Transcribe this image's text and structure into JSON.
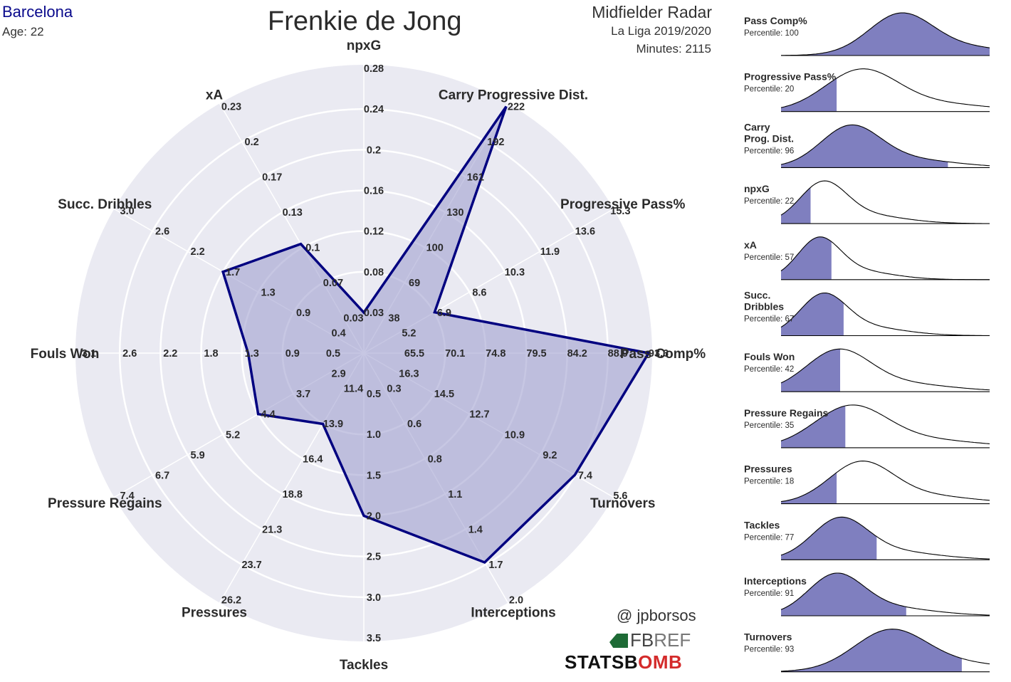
{
  "header": {
    "team": "Barcelona",
    "age": "Age: 22",
    "player": "Frenkie de Jong",
    "radar_title": "Midfielder Radar",
    "league": "La Liga 2019/2020",
    "minutes": "Minutes: 2115"
  },
  "credits": {
    "handle": "@ jpborsos",
    "fbref_fb": "FB",
    "fbref_ref": "REF",
    "statsbomb_a": "STATSB",
    "statsbomb_b": "OMB",
    "statsbomb_c": ""
  },
  "colors": {
    "background": "#eaeaf2",
    "polygon_fill": "#9999cc",
    "polygon_stroke": "#000080",
    "team": "#0a0a8c",
    "density_fill": "#7f7fbf"
  },
  "chart_data": [
    {
      "type": "radar",
      "rings": 5,
      "axes": [
        {
          "name": "npxG",
          "ticks": [
            "0.03",
            "0.08",
            "0.12",
            "0.16",
            "0.2",
            "0.24",
            "0.28"
          ],
          "value": 0.03
        },
        {
          "name": "Carry Progressive Dist.",
          "ticks": [
            "38",
            "69",
            "100",
            "130",
            "161",
            "192",
            "222"
          ],
          "value": 222
        },
        {
          "name": "Progressive Pass%",
          "ticks": [
            "5.2",
            "6.9",
            "8.6",
            "10.3",
            "11.9",
            "13.6",
            "15.3"
          ],
          "value": 6.9
        },
        {
          "name": "Pass Comp%",
          "ticks": [
            "65.5",
            "70.1",
            "74.8",
            "79.5",
            "84.2",
            "88.9",
            "93.6"
          ],
          "value": 93.6
        },
        {
          "name": "Turnovers",
          "ticks": [
            "16.3",
            "14.5",
            "12.7",
            "10.9",
            "9.2",
            "7.4",
            "5.6"
          ],
          "value": 7.4
        },
        {
          "name": "Interceptions",
          "ticks": [
            "0.3",
            "0.6",
            "0.8",
            "1.1",
            "1.4",
            "1.7",
            "2.0"
          ],
          "value": 1.7
        },
        {
          "name": "Tackles",
          "ticks": [
            "0.5",
            "1.0",
            "1.5",
            "2.0",
            "2.5",
            "3.0",
            "3.5"
          ],
          "value": 2.0
        },
        {
          "name": "Pressures",
          "ticks": [
            "11.4",
            "13.9",
            "16.4",
            "18.8",
            "21.3",
            "23.7",
            "26.2"
          ],
          "value": 13.9
        },
        {
          "name": "Pressure Regains",
          "ticks": [
            "2.9",
            "3.7",
            "4.4",
            "5.2",
            "5.9",
            "6.7",
            "7.4"
          ],
          "value": 4.4
        },
        {
          "name": "Fouls Won",
          "ticks": [
            "0.5",
            "0.9",
            "1.3",
            "1.8",
            "2.2",
            "2.6",
            "3.1"
          ],
          "value": 1.3
        },
        {
          "name": "Succ. Dribbles",
          "ticks": [
            "0.4",
            "0.9",
            "1.3",
            "1.7",
            "2.2",
            "2.6",
            "3.0"
          ],
          "value": 1.7
        },
        {
          "name": "xA",
          "ticks": [
            "0.03",
            "0.07",
            "0.1",
            "0.13",
            "0.17",
            "0.2",
            "0.23"
          ],
          "value": 0.1
        }
      ]
    },
    {
      "type": "area",
      "subtype": "density-percentiles",
      "panels": [
        {
          "name": "Pass Comp%",
          "label_lines": [
            "Pass Comp%"
          ],
          "percentile": "Percentile: 100",
          "p": 100,
          "mu": 0.57,
          "sd": 0.15
        },
        {
          "name": "Progressive Pass%",
          "label_lines": [
            "Progressive Pass%"
          ],
          "percentile": "Percentile: 20",
          "p": 20,
          "mu": 0.38,
          "sd": 0.17
        },
        {
          "name": "Carry Prog. Dist.",
          "label_lines": [
            "Carry",
            "Prog. Dist."
          ],
          "percentile": "Percentile: 96",
          "p": 96,
          "mu": 0.33,
          "sd": 0.14
        },
        {
          "name": "npxG",
          "label_lines": [
            "npxG"
          ],
          "percentile": "Percentile: 22",
          "p": 22,
          "mu": 0.2,
          "sd": 0.11
        },
        {
          "name": "xA",
          "label_lines": [
            "xA"
          ],
          "percentile": "Percentile: 57",
          "p": 57,
          "mu": 0.18,
          "sd": 0.1
        },
        {
          "name": "Succ. Dribbles",
          "label_lines": [
            "Succ.",
            "Dribbles"
          ],
          "percentile": "Percentile: 67",
          "p": 67,
          "mu": 0.2,
          "sd": 0.11
        },
        {
          "name": "Fouls Won",
          "label_lines": [
            "Fouls Won"
          ],
          "percentile": "Percentile: 42",
          "p": 42,
          "mu": 0.27,
          "sd": 0.15
        },
        {
          "name": "Pressure Regains",
          "label_lines": [
            "Pressure Regains"
          ],
          "percentile": "Percentile: 35",
          "p": 35,
          "mu": 0.33,
          "sd": 0.17
        },
        {
          "name": "Pressures",
          "label_lines": [
            "Pressures"
          ],
          "percentile": "Percentile: 18",
          "p": 18,
          "mu": 0.38,
          "sd": 0.15
        },
        {
          "name": "Tackles",
          "label_lines": [
            "Tackles"
          ],
          "percentile": "Percentile: 77",
          "p": 77,
          "mu": 0.28,
          "sd": 0.13
        },
        {
          "name": "Interceptions",
          "label_lines": [
            "Interceptions"
          ],
          "percentile": "Percentile: 91",
          "p": 91,
          "mu": 0.26,
          "sd": 0.13
        },
        {
          "name": "Turnovers",
          "label_lines": [
            "Turnovers"
          ],
          "percentile": "Percentile: 93",
          "p": 93,
          "mu": 0.52,
          "sd": 0.17
        }
      ]
    }
  ]
}
